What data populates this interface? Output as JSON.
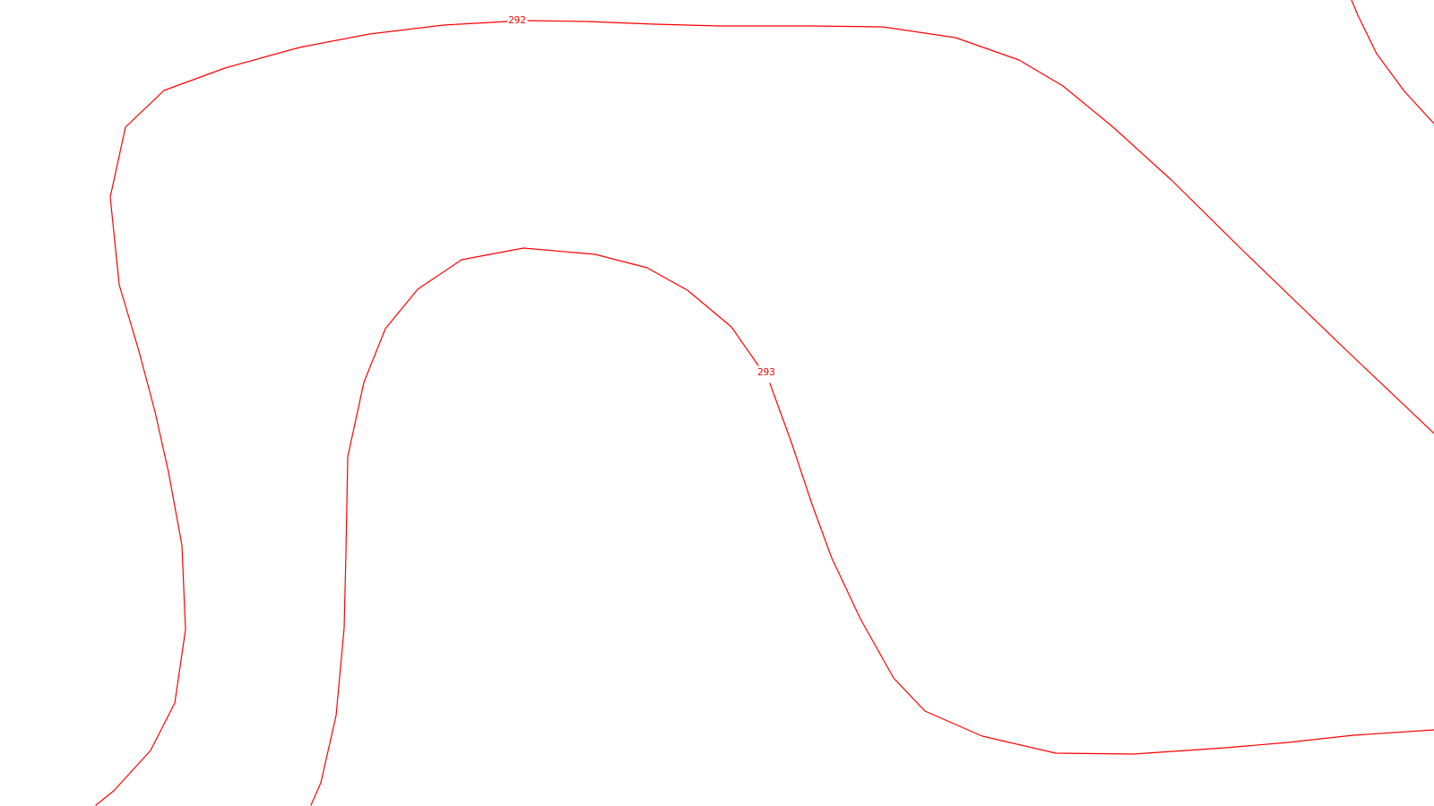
{
  "map": {
    "line_color": "#ff0000",
    "background_color": "#ffffff",
    "contours": [
      {
        "id": "contour-292",
        "label": "292"
      },
      {
        "id": "contour-293",
        "label": "293"
      },
      {
        "id": "contour-corner",
        "label": ""
      }
    ]
  }
}
